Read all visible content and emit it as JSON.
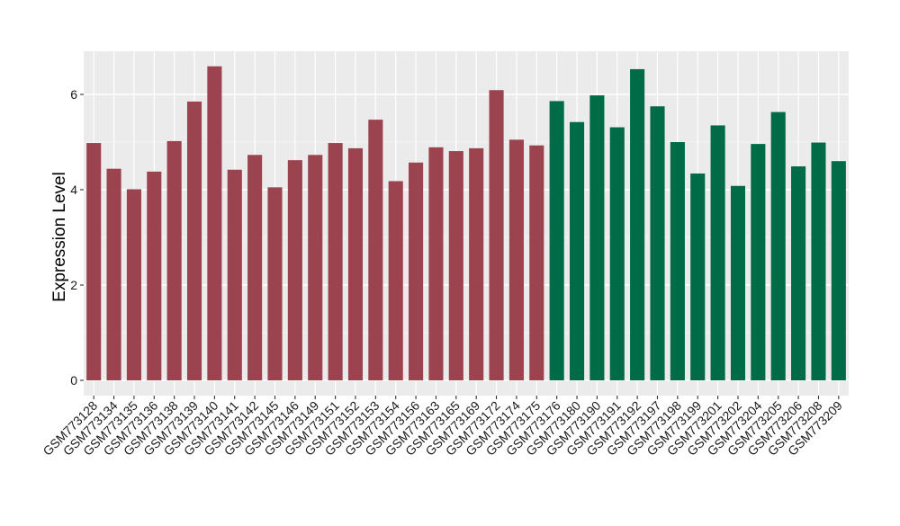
{
  "chart_data": {
    "type": "bar",
    "title": "",
    "xlabel": "",
    "ylabel": "Expression Level",
    "ylim": [
      0,
      6.85
    ],
    "yticks": [
      0,
      2,
      4,
      6
    ],
    "grid": true,
    "legend": "none",
    "panel_background": "#ebebeb",
    "categories": [
      "GSM773128",
      "GSM773134",
      "GSM773135",
      "GSM773136",
      "GSM773138",
      "GSM773139",
      "GSM773140",
      "GSM773141",
      "GSM773142",
      "GSM773145",
      "GSM773146",
      "GSM773149",
      "GSM773151",
      "GSM773152",
      "GSM773153",
      "GSM773154",
      "GSM773156",
      "GSM773163",
      "GSM773165",
      "GSM773169",
      "GSM773172",
      "GSM773174",
      "GSM773175",
      "GSM773176",
      "GSM773180",
      "GSM773190",
      "GSM773191",
      "GSM773192",
      "GSM773197",
      "GSM773198",
      "GSM773199",
      "GSM773201",
      "GSM773202",
      "GSM773204",
      "GSM773205",
      "GSM773206",
      "GSM773208",
      "GSM773209"
    ],
    "values": [
      4.98,
      4.44,
      4.01,
      4.38,
      5.02,
      5.85,
      6.59,
      4.42,
      4.73,
      4.05,
      4.62,
      4.73,
      4.98,
      4.87,
      5.47,
      4.18,
      4.57,
      4.89,
      4.81,
      4.87,
      6.09,
      5.05,
      4.93,
      5.86,
      5.42,
      5.98,
      5.31,
      6.53,
      5.75,
      5.0,
      4.34,
      5.35,
      4.08,
      4.96,
      5.63,
      4.49,
      4.99,
      4.6
    ],
    "groups": [
      0,
      0,
      0,
      0,
      0,
      0,
      0,
      0,
      0,
      0,
      0,
      0,
      0,
      0,
      0,
      0,
      0,
      0,
      0,
      0,
      0,
      0,
      0,
      1,
      1,
      1,
      1,
      1,
      1,
      1,
      1,
      1,
      1,
      1,
      1,
      1,
      1,
      1
    ],
    "group_colors": [
      "#9c4350",
      "#006b47"
    ]
  }
}
